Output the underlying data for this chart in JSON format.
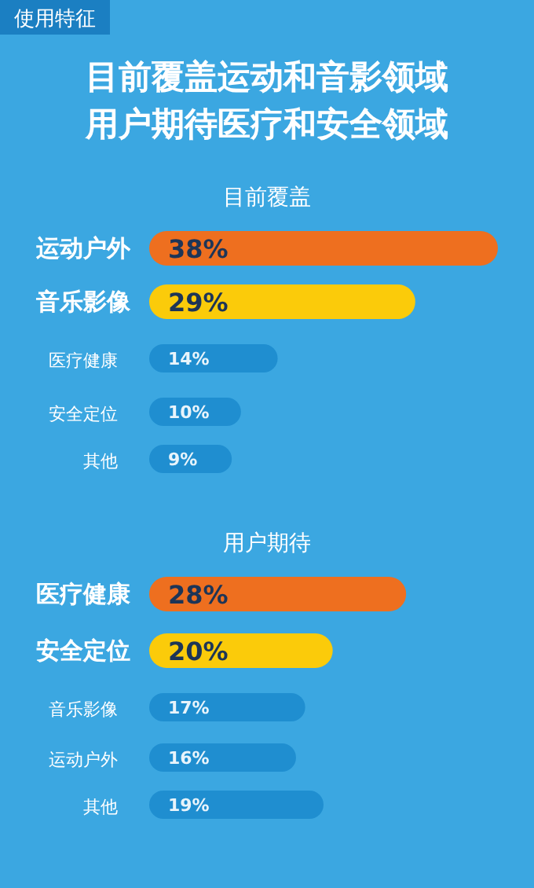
{
  "chart_data": [
    {
      "type": "bar",
      "orientation": "horizontal",
      "title": "目前覆盖运动和音影领域用户期待医疗和安全领域",
      "subtitle": "目前覆盖",
      "annotations": [
        "使用特征"
      ],
      "categories": [
        "运动户外",
        "音乐影像",
        "医疗健康",
        "安全定位",
        "其他"
      ],
      "values": [
        38,
        29,
        14,
        10,
        9
      ],
      "value_labels": [
        "38%",
        "29%",
        "14%",
        "10%",
        "9%"
      ],
      "colors": [
        "#ee6f1f",
        "#fbcb0a",
        "#1f8ed0",
        "#1f8ed0",
        "#1f8ed0"
      ]
    },
    {
      "type": "bar",
      "orientation": "horizontal",
      "title": "用户期待",
      "categories": [
        "医疗健康",
        "安全定位",
        "音乐影像",
        "运动户外",
        "其他"
      ],
      "values": [
        28,
        20,
        17,
        16,
        19
      ],
      "value_labels": [
        "28%",
        "20%",
        "17%",
        "16%",
        "19%"
      ],
      "colors": [
        "#ee6f1f",
        "#fbcb0a",
        "#1f8ed0",
        "#1f8ed0",
        "#1f8ed0"
      ]
    }
  ]
}
